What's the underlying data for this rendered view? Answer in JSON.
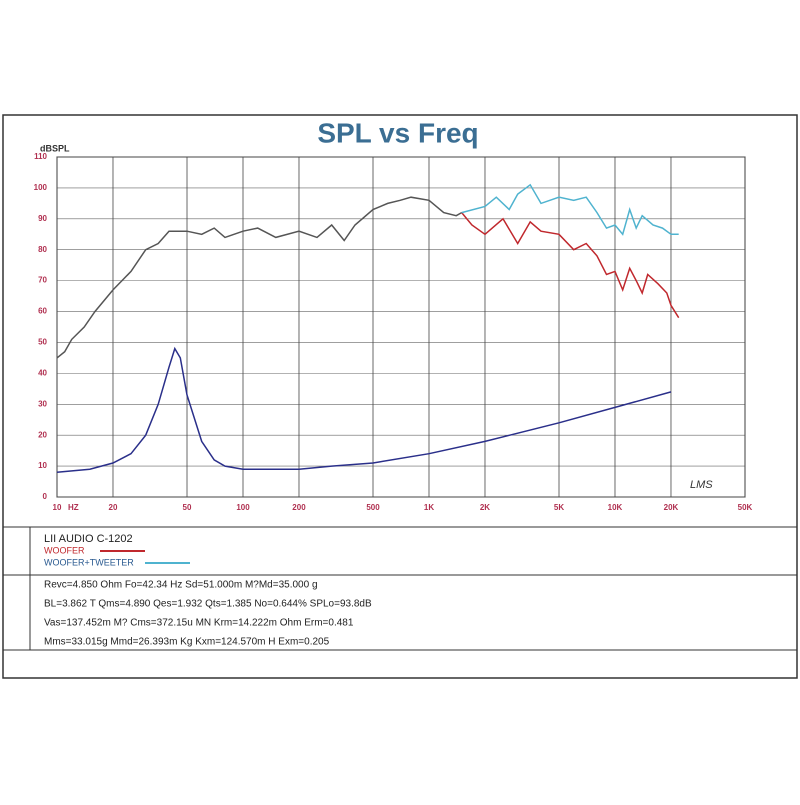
{
  "chart_data": {
    "type": "line",
    "title": "SPL vs Freq",
    "ylabel": "dBSPL",
    "xlabel": "HZ",
    "xscale": "log",
    "grid": true,
    "annotation": "LMS",
    "xlim": [
      10,
      50000
    ],
    "ylim": [
      0,
      110
    ],
    "xticks": [
      10,
      20,
      50,
      100,
      200,
      500,
      {
        "value": 1000,
        "label": "1K"
      },
      {
        "value": 2000,
        "label": "2K"
      },
      {
        "value": 5000,
        "label": "5K"
      },
      {
        "value": 10000,
        "label": "10K"
      },
      {
        "value": 20000,
        "label": "20K"
      },
      {
        "value": 50000,
        "label": "50K"
      }
    ],
    "yticks": [
      0,
      10,
      20,
      30,
      40,
      50,
      60,
      70,
      80,
      90,
      100,
      110
    ],
    "series": [
      {
        "color": "#555555",
        "x": [
          10,
          11,
          12,
          14,
          16,
          20,
          25,
          30,
          35,
          40,
          50,
          60,
          70,
          80,
          100,
          120,
          150,
          200,
          250,
          300,
          350,
          400,
          500,
          600,
          700,
          800,
          1000,
          1200,
          1400,
          1500
        ],
        "values": [
          45,
          47,
          51,
          55,
          60,
          67,
          73,
          80,
          82,
          86,
          86,
          85,
          87,
          84,
          86,
          87,
          84,
          86,
          84,
          88,
          83,
          88,
          93,
          95,
          96,
          97,
          96,
          92,
          91,
          92
        ]
      },
      {
        "name": "WOOFER",
        "color": "#c0282d",
        "x": [
          1500,
          1700,
          2000,
          2500,
          3000,
          3500,
          4000,
          5000,
          6000,
          7000,
          8000,
          9000,
          10000,
          11000,
          12000,
          13000,
          14000,
          15000,
          17000,
          19000,
          20000,
          22000
        ],
        "values": [
          92,
          88,
          85,
          90,
          82,
          89,
          86,
          85,
          80,
          82,
          78,
          72,
          73,
          67,
          74,
          70,
          66,
          72,
          69,
          66,
          62,
          58
        ]
      },
      {
        "name": "WOOFER+TWEETER",
        "color": "#4fb3cf",
        "x": [
          1500,
          2000,
          2300,
          2700,
          3000,
          3500,
          4000,
          5000,
          6000,
          7000,
          8000,
          9000,
          10000,
          11000,
          12000,
          13000,
          14000,
          16000,
          18000,
          20000,
          22000
        ],
        "values": [
          92,
          94,
          97,
          93,
          98,
          101,
          95,
          97,
          96,
          97,
          92,
          87,
          88,
          85,
          93,
          87,
          91,
          88,
          87,
          85,
          85
        ]
      },
      {
        "color": "#2a2f8a",
        "x": [
          10,
          15,
          20,
          25,
          30,
          35,
          40,
          43,
          46,
          50,
          60,
          70,
          80,
          100,
          200,
          300,
          500,
          1000,
          2000,
          5000,
          10000,
          20000
        ],
        "values": [
          8,
          9,
          11,
          14,
          20,
          30,
          42,
          48,
          45,
          33,
          18,
          12,
          10,
          9,
          9,
          10,
          11,
          14,
          18,
          24,
          29,
          34
        ]
      }
    ]
  },
  "info": {
    "model": "LII AUDIO C-1202",
    "params": [
      "Revc=4.850 Ohm  Fo=42.34 Hz  Sd=51.000m M?Md=35.000 g",
      "BL=3.862 T Qms=4.890  Qes=1.932  Qts=1.385  No=0.644%  SPLo=93.8dB",
      "Vas=137.452m M? Cms=372.15u MN Krm=14.222m Ohm Erm=0.481",
      "Mms=33.015g  Mmd=26.393m Kg  Kxm=124.570m H  Exm=0.205"
    ]
  }
}
